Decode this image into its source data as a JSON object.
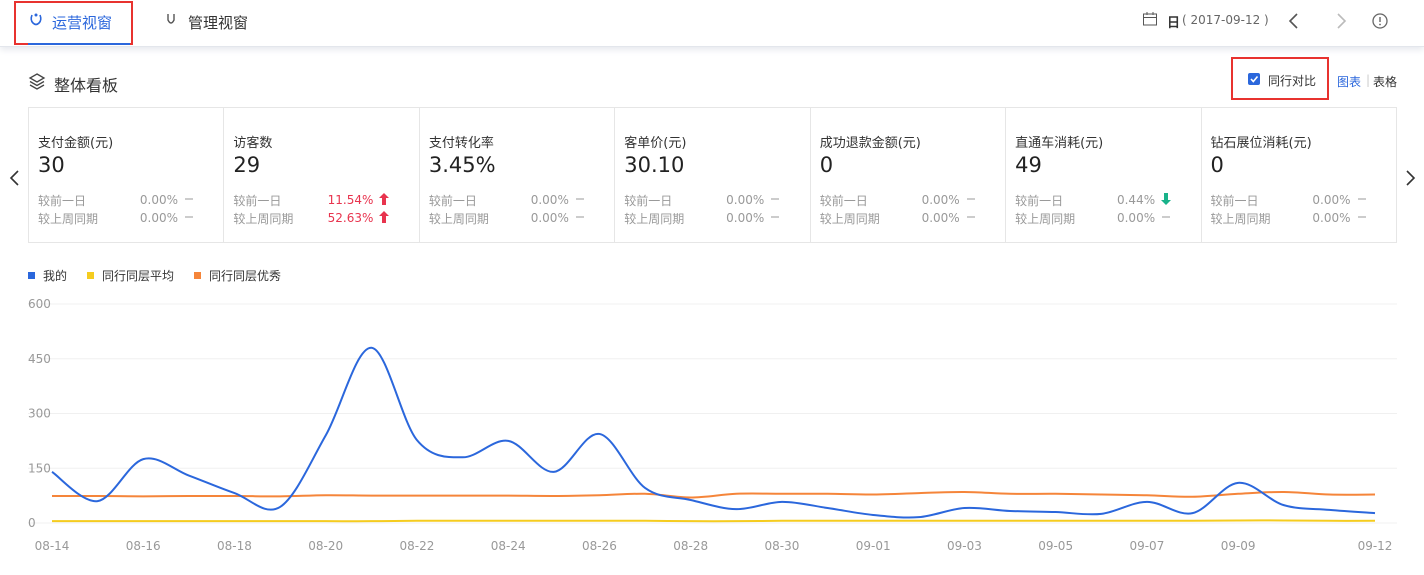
{
  "header": {
    "tabs": [
      "运营视窗",
      "管理视窗"
    ],
    "date_unit": "日",
    "date": "( 2017-09-12 )"
  },
  "panel": {
    "title": "整体看板",
    "peer_compare": "同行对比",
    "views": [
      "图表",
      "表格"
    ]
  },
  "kpis": [
    {
      "label": "支付金额(元)",
      "value": "30",
      "rows": [
        {
          "label": "较前一日",
          "value": "0.00%",
          "trend": "flat"
        },
        {
          "label": "较上周同期",
          "value": "0.00%",
          "trend": "flat"
        }
      ]
    },
    {
      "label": "访客数",
      "value": "29",
      "rows": [
        {
          "label": "较前一日",
          "value": "11.54%",
          "trend": "up"
        },
        {
          "label": "较上周同期",
          "value": "52.63%",
          "trend": "up"
        }
      ]
    },
    {
      "label": "支付转化率",
      "value": "3.45%",
      "rows": [
        {
          "label": "较前一日",
          "value": "0.00%",
          "trend": "flat"
        },
        {
          "label": "较上周同期",
          "value": "0.00%",
          "trend": "flat"
        }
      ]
    },
    {
      "label": "客单价(元)",
      "value": "30.10",
      "rows": [
        {
          "label": "较前一日",
          "value": "0.00%",
          "trend": "flat"
        },
        {
          "label": "较上周同期",
          "value": "0.00%",
          "trend": "flat"
        }
      ]
    },
    {
      "label": "成功退款金额(元)",
      "value": "0",
      "rows": [
        {
          "label": "较前一日",
          "value": "0.00%",
          "trend": "flat"
        },
        {
          "label": "较上周同期",
          "value": "0.00%",
          "trend": "flat"
        }
      ]
    },
    {
      "label": "直通车消耗(元)",
      "value": "49",
      "rows": [
        {
          "label": "较前一日",
          "value": "0.44%",
          "trend": "down"
        },
        {
          "label": "较上周同期",
          "value": "0.00%",
          "trend": "flat"
        }
      ]
    },
    {
      "label": "钻石展位消耗(元)",
      "value": "0",
      "rows": [
        {
          "label": "较前一日",
          "value": "0.00%",
          "trend": "flat"
        },
        {
          "label": "较上周同期",
          "value": "0.00%",
          "trend": "flat"
        }
      ]
    }
  ],
  "chart_data": {
    "type": "line",
    "smooth": true,
    "grid": true,
    "categories": [
      "08-14",
      null,
      "08-16",
      null,
      "08-18",
      null,
      "08-20",
      null,
      "08-22",
      null,
      "08-24",
      null,
      "08-26",
      null,
      "08-28",
      null,
      "08-30",
      null,
      "09-01",
      null,
      "09-03",
      null,
      "09-05",
      null,
      "09-07",
      null,
      "09-09",
      null,
      null,
      "09-12"
    ],
    "series": [
      {
        "name": "我的",
        "color": "#2b67dc",
        "values": [
          140,
          60,
          175,
          130,
          82,
          44,
          240,
          480,
          227,
          180,
          225,
          140,
          244,
          96,
          63,
          38,
          58,
          41,
          22,
          16,
          41,
          33,
          30,
          25,
          58,
          27,
          110,
          49,
          36,
          27
        ]
      },
      {
        "name": "同行同层平均",
        "color": "#f5cc1f",
        "values": [
          5,
          5,
          5,
          5,
          5,
          5,
          5,
          5,
          6,
          6,
          6,
          6,
          6,
          6,
          5,
          5,
          6,
          6,
          6,
          6,
          6,
          6,
          6,
          6,
          6,
          6,
          7,
          7,
          6,
          6
        ]
      },
      {
        "name": "同行同层优秀",
        "color": "#f5853a",
        "values": [
          74,
          74,
          73,
          74,
          74,
          73,
          76,
          75,
          75,
          75,
          75,
          74,
          76,
          80,
          70,
          80,
          80,
          80,
          78,
          82,
          85,
          80,
          80,
          78,
          76,
          72,
          80,
          85,
          78,
          78
        ]
      }
    ],
    "ylim": [
      0,
      600
    ],
    "yticks": [
      0,
      150,
      300,
      450,
      600
    ]
  }
}
